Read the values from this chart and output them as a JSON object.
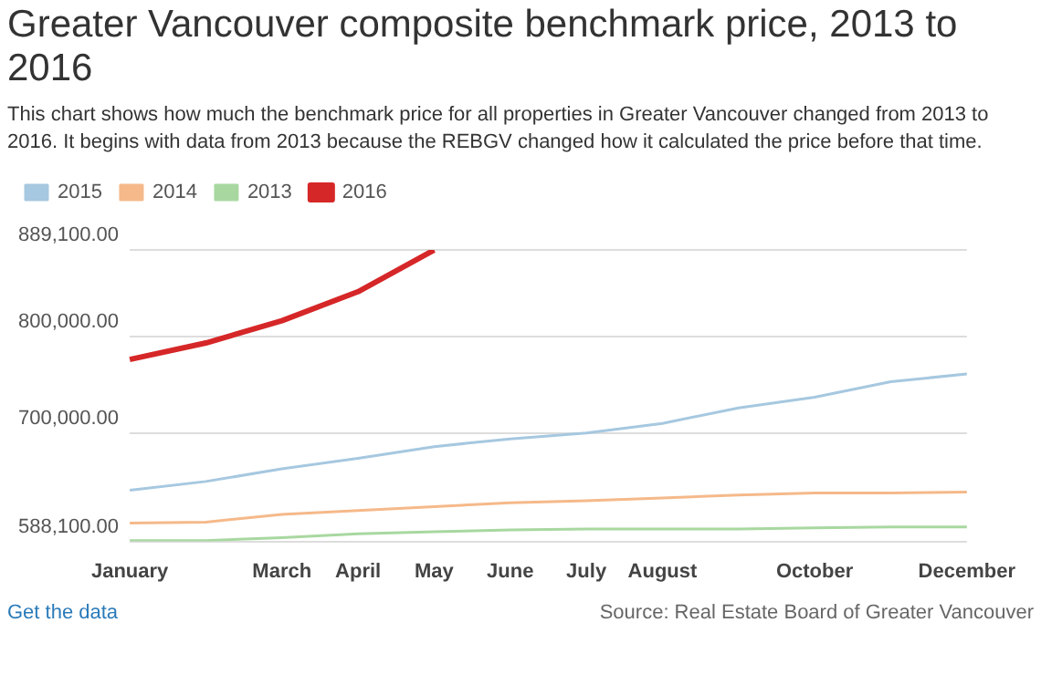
{
  "chart_data": {
    "type": "line",
    "title": "Greater Vancouver composite benchmark price, 2013 to 2016",
    "subtitle": "This chart shows how much the benchmark price for all properties in Greater Vancouver changed from 2013 to 2016. It begins with data from 2013 because the REBGV changed how it calculated the price before that time.",
    "categories": [
      "January",
      null,
      "March",
      "April",
      "May",
      "June",
      "July",
      "August",
      null,
      "October",
      null,
      "December"
    ],
    "series": [
      {
        "name": "2015",
        "color": "#a6c8e0",
        "values": [
          641000,
          650000,
          663000,
          674000,
          686000,
          694000,
          700000,
          710000,
          726000,
          737000,
          753000,
          761000
        ]
      },
      {
        "name": "2014",
        "color": "#f5b98a",
        "values": [
          607000,
          608000,
          616000,
          620000,
          624000,
          628000,
          630000,
          633000,
          636000,
          638000,
          638000,
          639000
        ]
      },
      {
        "name": "2013",
        "color": "#a8d8a0",
        "values": [
          589000,
          589000,
          592000,
          596000,
          598000,
          600000,
          601000,
          601000,
          601000,
          602000,
          603000,
          603000
        ]
      },
      {
        "name": "2016",
        "color": "#d62728",
        "values": [
          776000,
          793000,
          816000,
          846000,
          889000,
          null,
          null,
          null,
          null,
          null,
          null,
          null
        ]
      }
    ],
    "ylim": [
      588100,
      889100
    ],
    "yticks": [
      {
        "value": 588100,
        "label": "588,100.00"
      },
      {
        "value": 700000,
        "label": "700,000.00"
      },
      {
        "value": 800000,
        "label": "800,000.00"
      },
      {
        "value": 889100,
        "label": "889,100.00"
      }
    ],
    "grid": "y",
    "legend": "top left",
    "marker": "none",
    "line_style": "solid",
    "annotations": [
      "Get the data",
      "Source: Real Estate Board of Greater Vancouver"
    ]
  }
}
